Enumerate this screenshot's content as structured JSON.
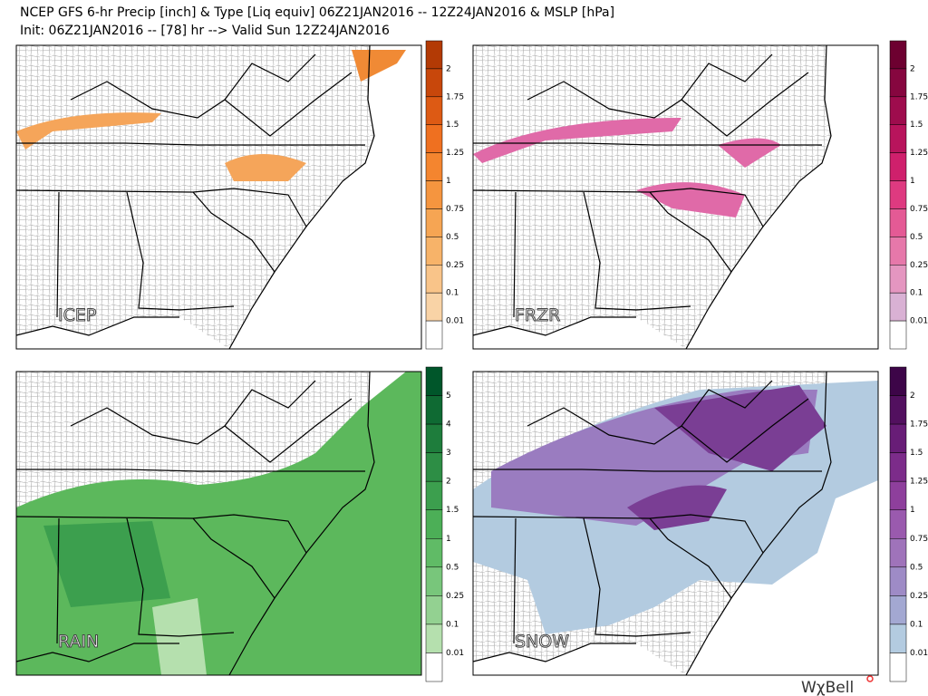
{
  "header": {
    "line1": "NCEP GFS 6-hr Precip [inch] & Type [Liq equiv] 06Z21JAN2016 -- 12Z24JAN2016 & MSLP [hPa]",
    "line2": "Init: 06Z21JAN2016 -- [78] hr --> Valid Sun 12Z24JAN2016"
  },
  "panels": [
    {
      "label": "ICEP",
      "colorbar": {
        "levels": [
          "2",
          "1.75",
          "1.5",
          "1.25",
          "1",
          "0.75",
          "0.5",
          "0.25",
          "0.1",
          "0.01"
        ],
        "colors": [
          "#b33a05",
          "#c8470b",
          "#dd5a14",
          "#ef7020",
          "#f4852f",
          "#f5953f",
          "#f6a553",
          "#f7b369",
          "#f9c489",
          "#f9d3a6",
          "#ffffff"
        ]
      }
    },
    {
      "label": "FRZR",
      "colorbar": {
        "levels": [
          "2",
          "1.75",
          "1.5",
          "1.25",
          "1",
          "0.75",
          "0.5",
          "0.25",
          "0.1",
          "0.01"
        ],
        "colors": [
          "#6d0030",
          "#86063f",
          "#9e0c4d",
          "#b8145c",
          "#cf206c",
          "#de3a80",
          "#e45a95",
          "#e678aa",
          "#e496c0",
          "#d9b1d4",
          "#ffffff"
        ]
      }
    },
    {
      "label": "RAIN",
      "colorbar": {
        "levels": [
          "5",
          "4",
          "3",
          "2",
          "1.5",
          "1",
          "0.5",
          "0.25",
          "0.1",
          "0.01"
        ],
        "colors": [
          "#00562a",
          "#0f6a33",
          "#1e7d3c",
          "#2d8e45",
          "#3c9f4e",
          "#4caf57",
          "#60bb66",
          "#78c67b",
          "#93d191",
          "#b5e0ae",
          "#ffffff"
        ]
      }
    },
    {
      "label": "SNOW",
      "colorbar": {
        "levels": [
          "2",
          "1.75",
          "1.5",
          "1.25",
          "1",
          "0.75",
          "0.5",
          "0.25",
          "0.1",
          "0.01"
        ],
        "colors": [
          "#3d0548",
          "#52105f",
          "#681d77",
          "#7c2c8a",
          "#8e3f9c",
          "#9a5aae",
          "#9f73ba",
          "#9e8bc6",
          "#a3a8d2",
          "#b3cbe0",
          "#ffffff"
        ]
      }
    }
  ],
  "footer": {
    "brand": "WχBell"
  }
}
